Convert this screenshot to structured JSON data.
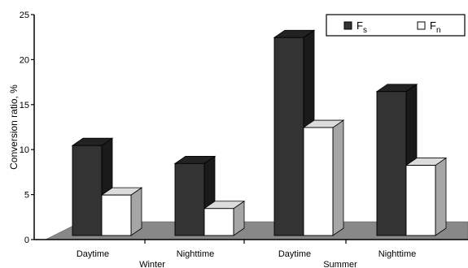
{
  "chart_data": {
    "type": "bar",
    "style": "3d",
    "ylabel": "Conversion ratio, %",
    "ylim": [
      0,
      25
    ],
    "yticks": [
      0,
      5,
      10,
      15,
      20,
      25
    ],
    "groups": [
      {
        "label": "Winter",
        "categories": [
          "Daytime",
          "Nighttime"
        ]
      },
      {
        "label": "Summer",
        "categories": [
          "Daytime",
          "Nighttime"
        ]
      }
    ],
    "categories": [
      "Daytime",
      "Nighttime",
      "Daytime",
      "Nighttime"
    ],
    "series": [
      {
        "name": "F",
        "subscript": "s",
        "color": "#333333",
        "values": [
          10.0,
          8.0,
          22.0,
          16.0
        ]
      },
      {
        "name": "F",
        "subscript": "n",
        "color": "#ffffff",
        "values": [
          4.5,
          3.0,
          12.0,
          7.8
        ]
      }
    ],
    "legend_position": "top-right",
    "floor_color": "#888888"
  }
}
